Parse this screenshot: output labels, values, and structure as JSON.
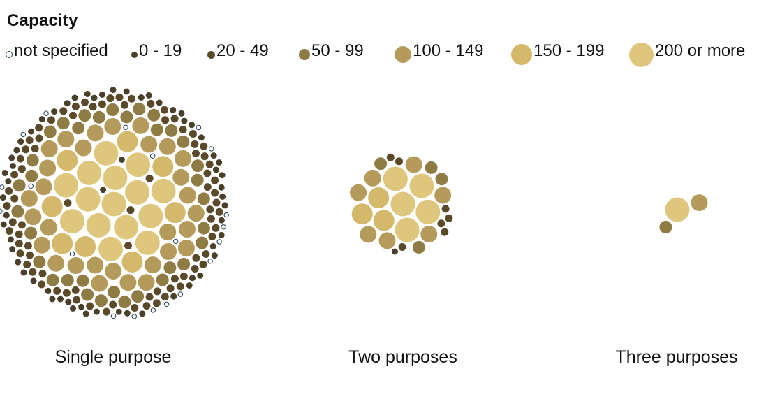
{
  "legend": {
    "title": "Capacity",
    "items": [
      {
        "key": "ns",
        "label": "not specified",
        "color": "#ffffff",
        "stroke": "#1f3d5a"
      },
      {
        "key": "c0",
        "label": "0 - 19",
        "color": "#4a3f28"
      },
      {
        "key": "c20",
        "label": "20 - 49",
        "color": "#5a4a2a"
      },
      {
        "key": "c50",
        "label": "50 - 99",
        "color": "#8f7c45"
      },
      {
        "key": "c100",
        "label": "100 - 149",
        "color": "#b49b5b"
      },
      {
        "key": "c150",
        "label": "150 - 199",
        "color": "#d4b96c"
      },
      {
        "key": "c200",
        "label": "200 or more",
        "color": "#dfc67d"
      }
    ]
  },
  "chart_data": {
    "type": "bubble-cluster",
    "title": "Capacity",
    "categories": [
      "not specified",
      "0 - 19",
      "20 - 49",
      "50 - 99",
      "100 - 149",
      "150 - 199",
      "200 or more"
    ],
    "groups": [
      {
        "label": "Single purpose",
        "counts": {
          "not specified": 20,
          "0 - 19": 60,
          "20 - 49": 80,
          "50 - 99": 34,
          "100 - 149": 30,
          "150 - 199": 8,
          "200 or more": 15
        }
      },
      {
        "label": "Two purposes",
        "counts": {
          "not specified": 0,
          "0 - 19": 1,
          "20 - 49": 7,
          "50 - 99": 4,
          "100 - 149": 7,
          "150 - 199": 3,
          "200 or more": 5
        }
      },
      {
        "label": "Three purposes",
        "counts": {
          "not specified": 0,
          "0 - 19": 0,
          "20 - 49": 0,
          "50 - 99": 1,
          "100 - 149": 1,
          "150 - 199": 0,
          "200 or more": 1
        }
      }
    ]
  }
}
